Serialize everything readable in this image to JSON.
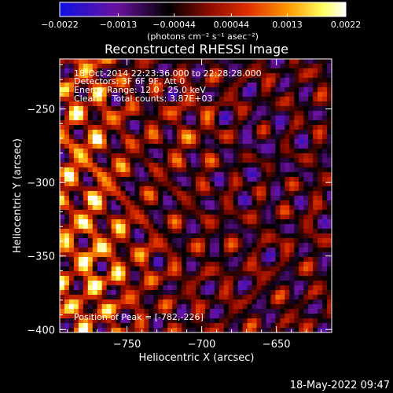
{
  "chart_data": {
    "type": "heatmap",
    "title": "Reconstructed RHESSI Image",
    "xlabel": "Heliocentric X (arcsec)",
    "ylabel": "Heliocentric Y (arcsec)",
    "xlim": [
      -795,
      -613
    ],
    "ylim": [
      -402,
      -216
    ],
    "x_ticks": [
      -750,
      -700,
      -650
    ],
    "y_ticks": [
      -250,
      -300,
      -350,
      -400
    ],
    "colorbar": {
      "colormap": "RHESSI blue-black-red-yellow-white",
      "colors": [
        "#1010e0",
        "#6a12a0",
        "#000000",
        "#8a0a00",
        "#e03000",
        "#ff9a00",
        "#ffff60",
        "#ffffff"
      ],
      "range": [
        -0.0022,
        0.0022
      ],
      "tick_labels": [
        "-0.0022",
        "-0.0013",
        "-0.00044",
        "0.00044",
        "0.0013",
        "0.0022"
      ],
      "units_label": "(photons cm⁻² s⁻¹ asec⁻²)"
    },
    "annotations": [
      "18-Oct-2014 22:23:36.000 to 22:28:28.000",
      "Detectors: 3F 6F 9F, Att 0",
      "Energy Range: 12.0 - 25.0 keV",
      "Clean     Total counts: 3.87E+03"
    ],
    "peak_label": "Position of Peak = [-782,-226]",
    "peak_position": [
      -782,
      -226
    ]
  },
  "footer": {
    "timestamp": "18-May-2022 09:47"
  }
}
